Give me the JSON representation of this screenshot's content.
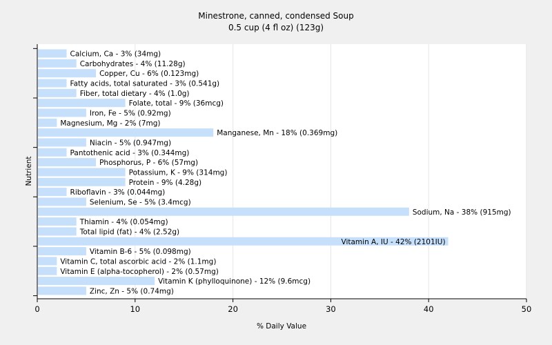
{
  "chart_data": {
    "type": "bar",
    "orientation": "horizontal",
    "title": "Minestrone, canned, condensed Soup",
    "subtitle": "0.5 cup (4 fl oz) (123g)",
    "xlabel": "% Daily Value",
    "ylabel": "Nutrient",
    "xlim": [
      0,
      50
    ],
    "xticks": [
      0,
      10,
      20,
      30,
      40,
      50
    ],
    "grid": true,
    "bar_color": "#c6dffb",
    "categories": [
      "Calcium, Ca",
      "Carbohydrates",
      "Copper, Cu",
      "Fatty acids, total saturated",
      "Fiber, total dietary",
      "Folate, total",
      "Iron, Fe",
      "Magnesium, Mg",
      "Manganese, Mn",
      "Niacin",
      "Pantothenic acid",
      "Phosphorus, P",
      "Potassium, K",
      "Protein",
      "Riboflavin",
      "Selenium, Se",
      "Sodium, Na",
      "Thiamin",
      "Total lipid (fat)",
      "Vitamin A, IU",
      "Vitamin B-6",
      "Vitamin C, total ascorbic acid",
      "Vitamin E (alpha-tocopherol)",
      "Vitamin K (phylloquinone)",
      "Zinc, Zn"
    ],
    "values": [
      3,
      4,
      6,
      3,
      4,
      9,
      5,
      2,
      18,
      5,
      3,
      6,
      9,
      9,
      3,
      5,
      38,
      4,
      4,
      42,
      5,
      2,
      2,
      12,
      5
    ],
    "labels": [
      "Calcium, Ca - 3% (34mg)",
      "Carbohydrates - 4% (11.28g)",
      "Copper, Cu - 6% (0.123mg)",
      "Fatty acids, total saturated - 3% (0.541g)",
      "Fiber, total dietary - 4% (1.0g)",
      "Folate, total - 9% (36mcg)",
      "Iron, Fe - 5% (0.92mg)",
      "Magnesium, Mg - 2% (7mg)",
      "Manganese, Mn - 18% (0.369mg)",
      "Niacin - 5% (0.947mg)",
      "Pantothenic acid - 3% (0.344mg)",
      "Phosphorus, P - 6% (57mg)",
      "Potassium, K - 9% (314mg)",
      "Protein - 9% (4.28g)",
      "Riboflavin - 3% (0.044mg)",
      "Selenium, Se - 5% (3.4mcg)",
      "Sodium, Na - 38% (915mg)",
      "Thiamin - 4% (0.054mg)",
      "Total lipid (fat) - 4% (2.52g)",
      "Vitamin A, IU - 42% (2101IU)",
      "Vitamin B-6 - 5% (0.098mg)",
      "Vitamin C, total ascorbic acid - 2% (1.1mg)",
      "Vitamin E (alpha-tocopherol) - 2% (0.57mg)",
      "Vitamin K (phylloquinone) - 12% (9.6mcg)",
      "Zinc, Zn - 5% (0.74mg)"
    ]
  }
}
